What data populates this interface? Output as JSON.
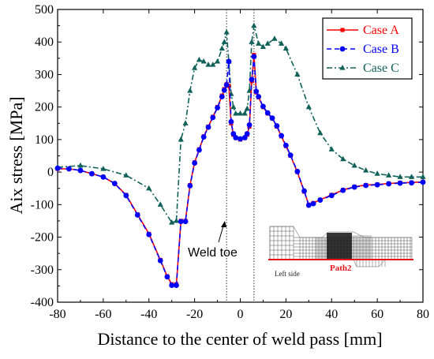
{
  "chart_data": {
    "type": "line",
    "xlabel": "Distance to the center of weld pass [mm]",
    "ylabel": "Aix stress [MPa]",
    "xlim": [
      -80,
      80
    ],
    "ylim": [
      -400,
      500
    ],
    "xticks": [
      -80,
      -60,
      -40,
      -20,
      0,
      20,
      40,
      60,
      80
    ],
    "yticks": [
      -400,
      -300,
      -200,
      -100,
      0,
      100,
      200,
      300,
      400,
      500
    ],
    "grid": false,
    "legend_position": "top-right",
    "weld_toe_x": [
      -6,
      6
    ],
    "annotations": {
      "weld_toe": "Weld toe"
    },
    "inset": {
      "left_label": "Left side",
      "path_label": "Path2"
    },
    "series": [
      {
        "name": "Case A",
        "color": "#ff0000",
        "marker": "square",
        "x": [
          -80,
          -75,
          -70,
          -65,
          -60,
          -55,
          -50,
          -45,
          -40,
          -35,
          -32,
          -30,
          -28,
          -26,
          -24,
          -22,
          -20,
          -18,
          -16,
          -14,
          -12,
          -10,
          -8,
          -7,
          -6,
          -5,
          -4,
          -3,
          -2,
          0,
          2,
          3,
          4,
          5,
          6,
          7,
          8,
          10,
          12,
          14,
          16,
          18,
          20,
          22,
          25,
          28,
          30,
          32,
          35,
          40,
          45,
          50,
          55,
          60,
          65,
          70,
          75,
          80
        ],
        "y": [
          10,
          10,
          5,
          -5,
          -15,
          -35,
          -70,
          -130,
          -190,
          -270,
          -320,
          -345,
          -345,
          -150,
          -150,
          -40,
          30,
          70,
          110,
          140,
          170,
          200,
          235,
          255,
          270,
          265,
          150,
          115,
          105,
          100,
          105,
          115,
          140,
          280,
          360,
          245,
          230,
          200,
          180,
          165,
          140,
          110,
          80,
          50,
          0,
          -60,
          -100,
          -95,
          -85,
          -70,
          -55,
          -45,
          -40,
          -38,
          -35,
          -33,
          -32,
          -30
        ]
      },
      {
        "name": "Case B",
        "color": "#0000ff",
        "marker": "circle",
        "x": [
          -80,
          -75,
          -70,
          -65,
          -60,
          -55,
          -50,
          -45,
          -40,
          -35,
          -32,
          -30,
          -28,
          -26,
          -24,
          -22,
          -20,
          -18,
          -16,
          -14,
          -12,
          -10,
          -8,
          -7,
          -6,
          -5,
          -4,
          -3,
          -2,
          0,
          2,
          3,
          4,
          5,
          6,
          7,
          8,
          10,
          12,
          14,
          16,
          18,
          20,
          22,
          25,
          28,
          30,
          32,
          35,
          40,
          45,
          50,
          55,
          60,
          65,
          70,
          75,
          80
        ],
        "y": [
          12,
          10,
          5,
          -5,
          -15,
          -35,
          -72,
          -132,
          -192,
          -272,
          -322,
          -348,
          -348,
          -152,
          -152,
          -42,
          28,
          68,
          108,
          138,
          168,
          198,
          232,
          252,
          268,
          340,
          155,
          118,
          106,
          102,
          106,
          118,
          145,
          285,
          355,
          248,
          232,
          202,
          182,
          166,
          142,
          112,
          82,
          52,
          2,
          -58,
          -102,
          -97,
          -86,
          -72,
          -56,
          -46,
          -41,
          -39,
          -36,
          -34,
          -33,
          -31
        ]
      },
      {
        "name": "Case C",
        "color": "#0f6159",
        "marker": "triangle",
        "x": [
          -80,
          -70,
          -60,
          -50,
          -40,
          -35,
          -30,
          -28,
          -26,
          -24,
          -22,
          -20,
          -18,
          -16,
          -14,
          -12,
          -10,
          -8,
          -7,
          -6,
          -5,
          -4,
          -3,
          -2,
          0,
          2,
          3,
          4,
          5,
          6,
          8,
          10,
          12,
          15,
          18,
          20,
          25,
          30,
          35,
          40,
          45,
          50,
          55,
          60,
          65,
          70,
          75,
          80
        ],
        "y": [
          15,
          20,
          10,
          -10,
          -50,
          -100,
          -155,
          -150,
          100,
          150,
          250,
          320,
          345,
          340,
          330,
          330,
          340,
          380,
          400,
          430,
          340,
          240,
          200,
          180,
          180,
          180,
          195,
          250,
          400,
          450,
          395,
          385,
          395,
          410,
          395,
          380,
          300,
          200,
          120,
          70,
          40,
          20,
          5,
          -5,
          -10,
          -15,
          -15,
          -15
        ]
      }
    ]
  }
}
